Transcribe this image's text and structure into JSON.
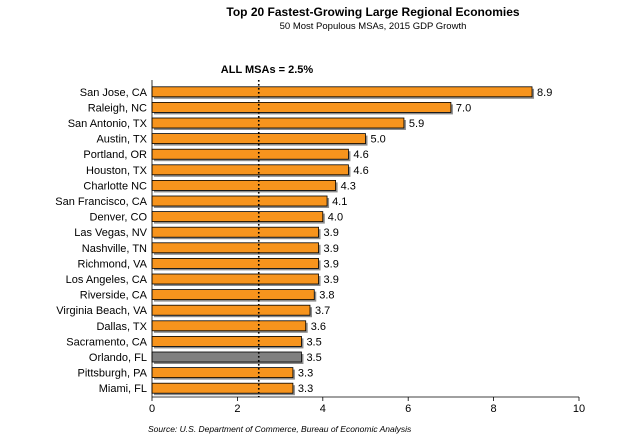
{
  "chart_data": {
    "type": "bar",
    "orientation": "horizontal",
    "title": "Top 20 Fastest-Growing Large Regional Economies",
    "subtitle": "50 Most Populous MSAs, 2015 GDP Growth",
    "source": "Source: U.S. Department of Commerce, Bureau of Economic Analysis",
    "reference_line": {
      "label": "ALL MSAs = 2.5%",
      "value": 2.5,
      "style": "dotted"
    },
    "categories": [
      "San Jose, CA",
      "Raleigh, NC",
      "San Antonio, TX",
      "Austin, TX",
      "Portland, OR",
      "Houston, TX",
      "Charlotte NC",
      "San Francisco, CA",
      "Denver, CO",
      "Las Vegas, NV",
      "Nashville, TN",
      "Richmond, VA",
      "Los Angeles, CA",
      "Riverside, CA",
      "Virginia Beach, VA",
      "Dallas, TX",
      "Sacramento, CA",
      "Orlando, FL",
      "Pittsburgh, PA",
      "Miami, FL"
    ],
    "values": [
      8.9,
      7.0,
      5.9,
      5.0,
      4.6,
      4.6,
      4.3,
      4.1,
      4.0,
      3.9,
      3.9,
      3.9,
      3.9,
      3.8,
      3.7,
      3.6,
      3.5,
      3.5,
      3.3,
      3.3
    ],
    "value_labels": [
      "8.9",
      "7.0",
      "5.9",
      "5.0",
      "4.6",
      "4.6",
      "4.3",
      "4.1",
      "4.0",
      "3.9",
      "3.9",
      "3.9",
      "3.9",
      "3.8",
      "3.7",
      "3.6",
      "3.5",
      "3.5",
      "3.3",
      "3.3"
    ],
    "highlight_category": "Orlando, FL",
    "xlim": [
      0,
      10
    ],
    "xticks": [
      0,
      2,
      4,
      6,
      8,
      10
    ],
    "grid": false,
    "colors": {
      "bar": "#f7941d",
      "highlight": "#808080",
      "bar_outline": "#000000",
      "bar_shadow": "#8c8c8c",
      "reference_line": "#000000"
    }
  }
}
